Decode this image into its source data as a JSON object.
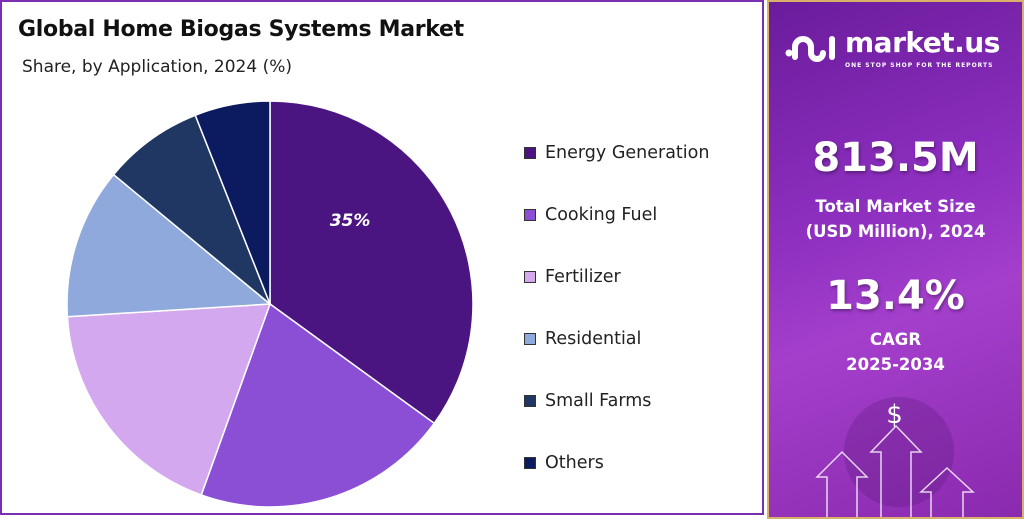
{
  "header": {
    "title": "Global Home Biogas Systems Market",
    "subtitle": "Share, by Application, 2024 (%)"
  },
  "chart_data": {
    "type": "pie",
    "title": "Global Home Biogas Systems Market",
    "subtitle": "Share, by Application, 2024 (%)",
    "categories": [
      "Energy Generation",
      "Cooking Fuel",
      "Fertilizer",
      "Residential",
      "Small Farms",
      "Others"
    ],
    "values": [
      35,
      20.5,
      18.5,
      12,
      8,
      6
    ],
    "colors": [
      "#4b1581",
      "#8a4fd5",
      "#d3a8ef",
      "#8fa9dc",
      "#1f3762",
      "#0c1b5f"
    ],
    "data_labels": [
      "35%",
      "",
      "",
      "",
      "",
      ""
    ],
    "legend_position": "right"
  },
  "sidebar": {
    "brand": "market.us",
    "tagline": "ONE STOP SHOP FOR THE REPORTS",
    "market_size": "813.5M",
    "market_size_label_1": "Total Market Size",
    "market_size_label_2": "(USD Million), 2024",
    "cagr": "13.4%",
    "cagr_label": "CAGR",
    "cagr_period": "2025-2034",
    "dollar": "$"
  }
}
